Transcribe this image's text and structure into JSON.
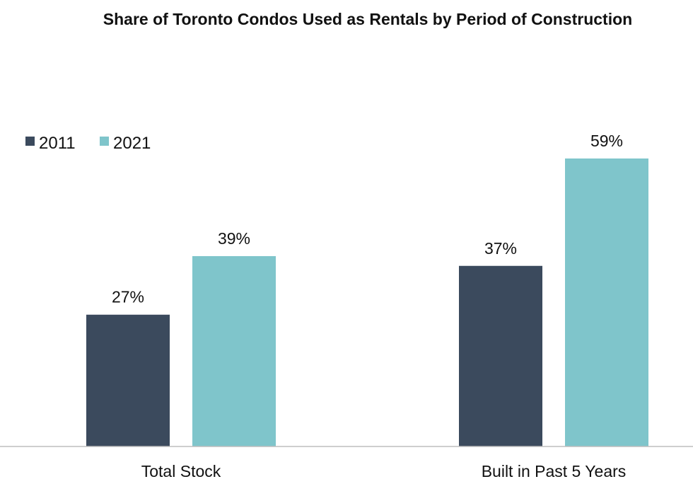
{
  "chart_data": {
    "type": "bar",
    "title": "Share of Toronto Condos Used as Rentals by Period of Construction",
    "xlabel": "",
    "ylabel": "",
    "categories": [
      "Total Stock",
      "Built in Past 5 Years"
    ],
    "series": [
      {
        "name": "2011",
        "values": [
          27,
          37
        ],
        "labels": [
          "27%",
          "37%"
        ],
        "color": "#3b4a5d"
      },
      {
        "name": "2021",
        "values": [
          39,
          59
        ],
        "labels": [
          "39%",
          "59%"
        ],
        "color": "#7fc5cb"
      }
    ],
    "ylim": [
      0,
      59
    ],
    "grid": false,
    "legend_position": "top-left",
    "axis_color": "#bdbdbd"
  }
}
